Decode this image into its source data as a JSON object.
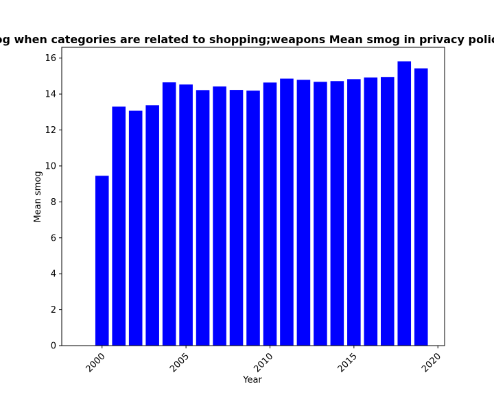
{
  "chart_data": {
    "type": "bar",
    "title": "Mean smog when categories are related to shopping;weapons Mean smog in privacy policies by year",
    "xlabel": "Year",
    "ylabel": "Mean smog",
    "x": [
      2000,
      2001,
      2002,
      2003,
      2004,
      2005,
      2006,
      2007,
      2008,
      2009,
      2010,
      2011,
      2012,
      2013,
      2014,
      2015,
      2016,
      2017,
      2018,
      2019
    ],
    "values": [
      9.45,
      13.3,
      13.07,
      13.38,
      14.65,
      14.53,
      14.22,
      14.42,
      14.23,
      14.19,
      14.64,
      14.86,
      14.79,
      14.68,
      14.72,
      14.83,
      14.92,
      14.95,
      15.82,
      15.43
    ],
    "xlim": [
      1997.6,
      2020.4
    ],
    "ylim": [
      0,
      16.6
    ],
    "xticks": [
      2000,
      2005,
      2010,
      2015,
      2020
    ],
    "yticks": [
      0,
      2,
      4,
      6,
      8,
      10,
      12,
      14,
      16
    ],
    "bar_color": "#0000ff",
    "grid": false,
    "legend": "none"
  }
}
